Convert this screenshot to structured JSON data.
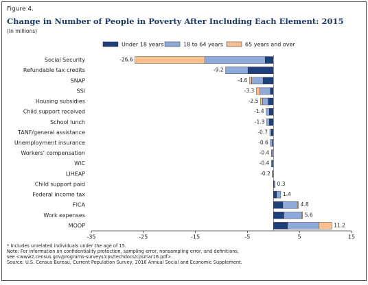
{
  "chart_data": {
    "type": "stacked-barh",
    "figure_label": "Figure 4.",
    "title": "Change in Number of People in Poverty After Including Each Element: 2015",
    "subtitle": "(In millions)",
    "categories": [
      "Social Security",
      "Refundable tax credits",
      "SNAP",
      "SSI",
      "Housing subsidies",
      "Child support received",
      "School lunch",
      "TANF/general assistance",
      "Unemployment insurance",
      "Workers' compensation",
      "WIC",
      "LIHEAP",
      "Child support paid",
      "Federal income tax",
      "FICA",
      "Work expenses",
      "MOOP"
    ],
    "series": [
      {
        "name": "Under 18 years",
        "color": "#1f3f7a",
        "values": [
          -1.6,
          -4.9,
          -2.0,
          -0.6,
          -1.0,
          -0.8,
          -0.8,
          -0.4,
          -0.2,
          0,
          -0.2,
          -0.1,
          0.1,
          0.6,
          1.8,
          2.0,
          2.7
        ]
      },
      {
        "name": "18 to 64 years",
        "color": "#8eaadb",
        "values": [
          -11.6,
          -4.3,
          -2.2,
          -2.0,
          -1.1,
          -0.6,
          -0.5,
          -0.3,
          -0.4,
          -0.3,
          -0.2,
          -0.1,
          0.2,
          0.8,
          2.8,
          3.4,
          6.0
        ]
      },
      {
        "name": "65 years and over",
        "color": "#f7c08c",
        "values": [
          -13.4,
          0,
          -0.4,
          -0.7,
          -0.4,
          0,
          0,
          0,
          0,
          -0.1,
          0,
          0,
          0,
          0,
          0.2,
          0.2,
          2.5
        ]
      }
    ],
    "totals": [
      -26.6,
      -9.2,
      -4.6,
      -3.3,
      -2.5,
      -1.4,
      -1.3,
      -0.7,
      -0.6,
      -0.4,
      -0.4,
      -0.2,
      0.3,
      1.4,
      4.8,
      5.6,
      11.2
    ],
    "xlim": [
      -35,
      15
    ],
    "xticks": [
      -35,
      -25,
      -15,
      -5,
      5,
      15
    ],
    "legend": "top",
    "notes": [
      "* Includes unrelated individuals under the age of 15.",
      "Note: For information on confidentiality protection, sampling error, nonsampling error, and definitions,",
      "see <www2.census.gov/programs-surveys/cps/techdocs/cpsmar16.pdf>.",
      "Source: U.S. Census Bureau, Current Population Survey, 2016 Annual Social and Economic Supplement."
    ]
  }
}
